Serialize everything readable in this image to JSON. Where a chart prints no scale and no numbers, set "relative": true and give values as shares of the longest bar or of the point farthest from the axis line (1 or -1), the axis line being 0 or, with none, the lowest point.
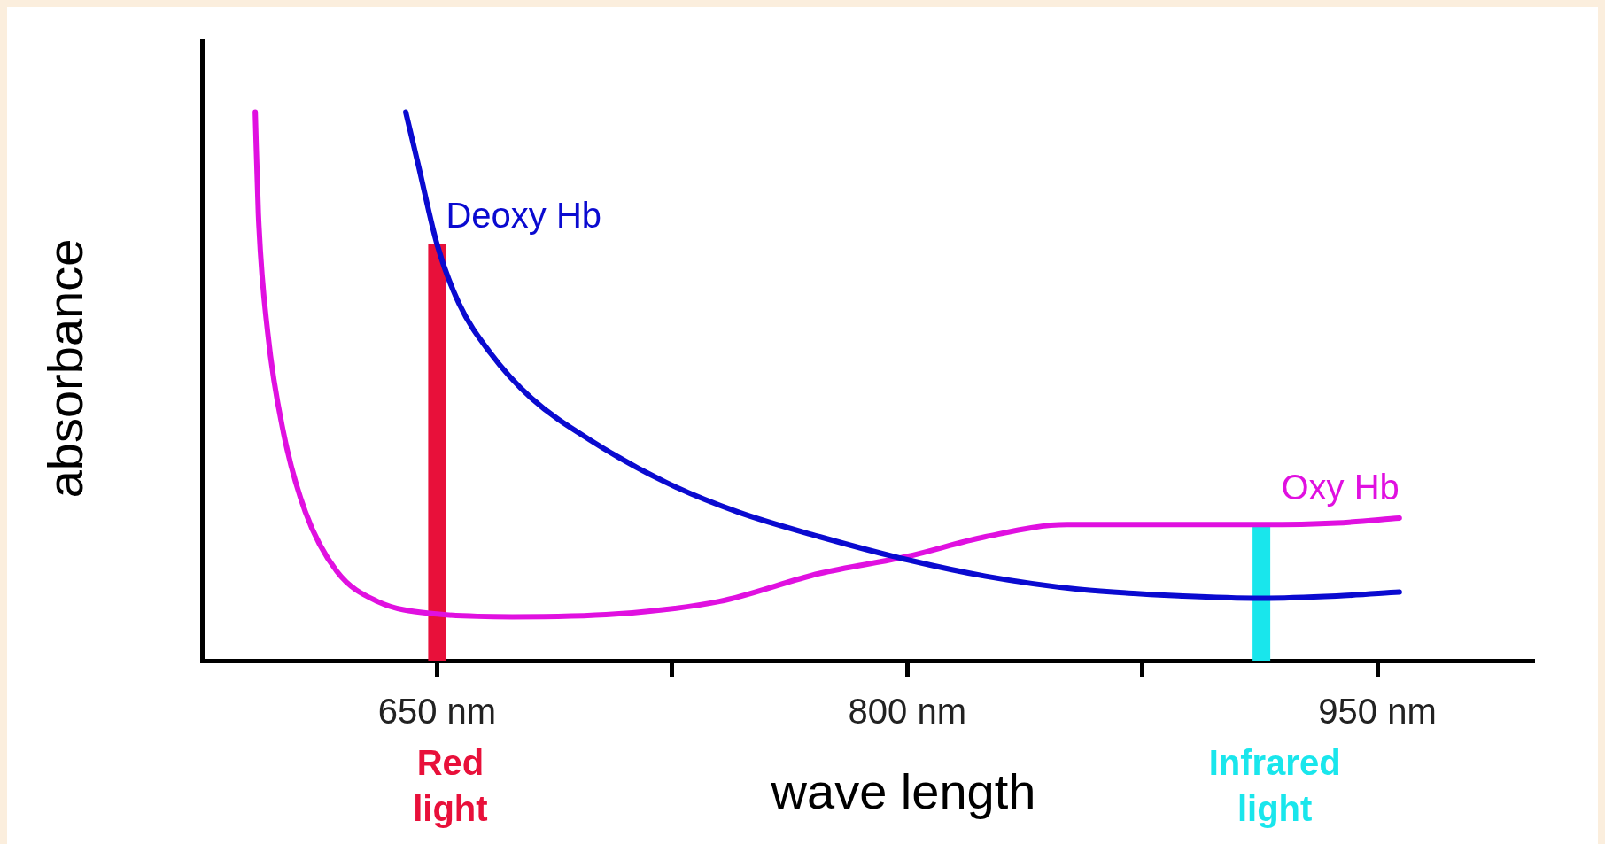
{
  "chart_data": {
    "type": "line",
    "xlabel": "wave length",
    "ylabel": "absorbance",
    "relative": true,
    "grid": false,
    "legend": false,
    "marker": "none",
    "line_style": "solid",
    "tick_labels": "x",
    "xlim": [
      575,
      1000
    ],
    "xticks": [
      {
        "value": 650,
        "label": "650 nm"
      },
      {
        "value": 725,
        "label": null
      },
      {
        "value": 800,
        "label": "800 nm"
      },
      {
        "value": 875,
        "label": null
      },
      {
        "value": 950,
        "label": "950 nm"
      }
    ],
    "series": [
      {
        "name": "Deoxy Hb",
        "color": "#0a0ad0",
        "x": [
          640,
          644,
          650,
          657,
          667,
          680,
          700,
          723,
          746,
          772,
          800,
          825,
          855,
          888,
          913,
          937,
          957
        ],
        "values": [
          1,
          0.904,
          0.759,
          0.651,
          0.561,
          0.479,
          0.398,
          0.325,
          0.271,
          0.226,
          0.184,
          0.154,
          0.13,
          0.118,
          0.114,
          0.118,
          0.125
        ]
      },
      {
        "name": "Oxy Hb",
        "color": "#e010e0",
        "x": [
          592,
          593,
          596,
          601,
          608,
          618,
          631,
          650,
          674,
          707,
          740,
          772,
          800,
          825,
          851,
          881,
          913,
          937,
          957
        ],
        "values": [
          1,
          0.814,
          0.597,
          0.416,
          0.271,
          0.163,
          0.108,
          0.085,
          0.08,
          0.085,
          0.108,
          0.159,
          0.19,
          0.226,
          0.248,
          0.248,
          0.248,
          0.251,
          0.26
        ]
      }
    ],
    "ref_lines": [
      {
        "axis": "x",
        "value": 650,
        "label": "Red light",
        "color": "#e8103a"
      },
      {
        "axis": "x",
        "value": 913,
        "label": "Infrared light",
        "color": "#19e6ec"
      }
    ]
  }
}
